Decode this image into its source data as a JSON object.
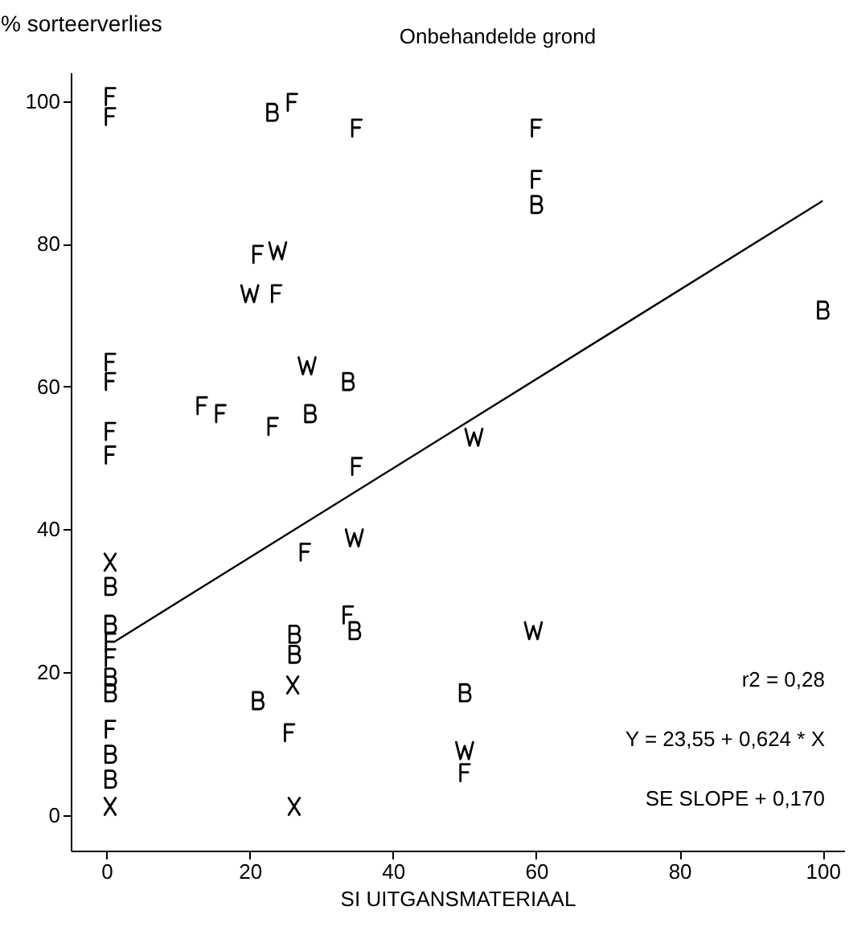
{
  "chart_data": {
    "type": "scatter",
    "title": "Onbehandelde grond",
    "xlabel": "SI UITGANSMATERIAAL",
    "ylabel": "% sorteerverlies",
    "xlim": [
      -5,
      103
    ],
    "ylim": [
      -5,
      104
    ],
    "xticks": [
      0,
      20,
      40,
      60,
      80,
      100
    ],
    "yticks": [
      0,
      20,
      40,
      60,
      80,
      100
    ],
    "series": [
      {
        "color": "#000000",
        "x": [
          0.5,
          0.5,
          0.5,
          0.5,
          0.5,
          0.5,
          0.5,
          0.5,
          0.5,
          25.9,
          34.9,
          21.1,
          23.7,
          13.3,
          15.9,
          23.2,
          34.9,
          27.7,
          33.7,
          25.5,
          60,
          60,
          50
        ],
        "values": [
          100.6,
          97.8,
          63.4,
          60.7,
          53.7,
          50.4,
          24.2,
          22,
          12,
          99.8,
          96.2,
          78.5,
          73,
          57.3,
          56.2,
          54.4,
          48.8,
          36.8,
          28,
          11.5,
          96.2,
          89,
          5.9
        ]
      },
      {
        "color": "#000000",
        "x": [
          0.5,
          0.5,
          0.5,
          0.5,
          0.5,
          0.5,
          23.1,
          33.7,
          28.4,
          34.6,
          26.2,
          26.2,
          21.1,
          60,
          100,
          50
        ],
        "values": [
          32,
          26.7,
          19.3,
          17.1,
          8.5,
          5,
          98.4,
          60.7,
          56.2,
          25.8,
          25.3,
          22.5,
          16,
          85.5,
          70.7,
          17.1
        ]
      },
      {
        "color": "#000000",
        "x": [
          23.9,
          20,
          28,
          34.6,
          51.3,
          59.6,
          50
        ],
        "values": [
          79,
          73,
          62.9,
          38.8,
          52.9,
          25.8,
          9
        ]
      },
      {
        "color": "#000000",
        "x": [
          0.5,
          0.5,
          26,
          26.2
        ],
        "values": [
          35.4,
          1.2,
          18.2,
          1.2
        ]
      },
      {
        "type": "line",
        "color": "#000000",
        "x": [
          1,
          100
        ],
        "values": [
          24.2,
          86
        ]
      }
    ],
    "annotations": [
      "r2 = 0,28",
      "Y = 23,55 + 0,624 * X",
      "SE SLOPE + 0,170"
    ]
  }
}
